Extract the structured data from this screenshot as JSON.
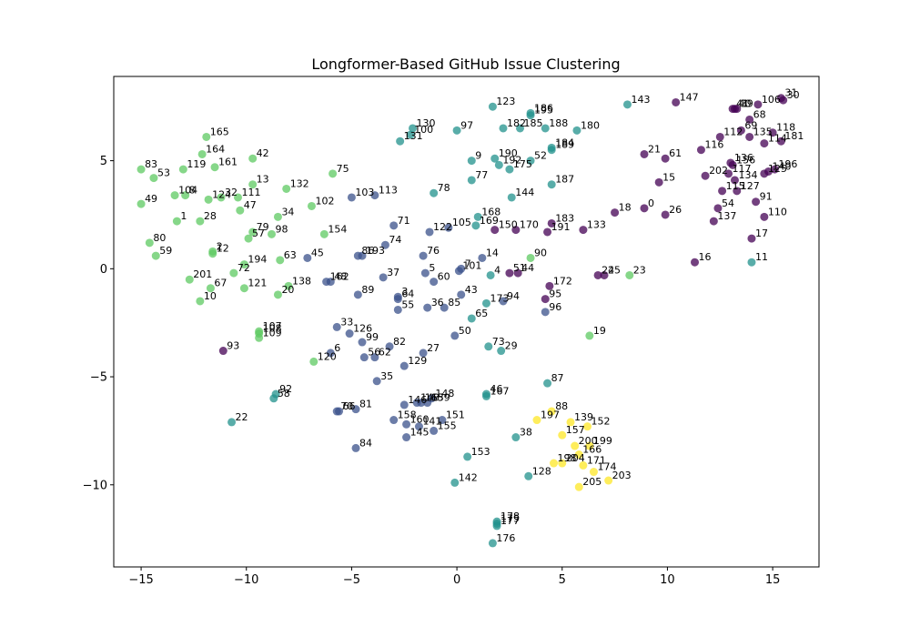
{
  "chart_data": {
    "type": "scatter",
    "title": "Longformer-Based GitHub Issue Clustering",
    "xlabel": "",
    "ylabel": "",
    "xlim": [
      -16.3,
      17.2
    ],
    "ylim": [
      -13.8,
      8.9
    ],
    "xticks": [
      -15,
      -10,
      -5,
      0,
      5,
      10,
      15
    ],
    "yticks": [
      -10,
      -5,
      0,
      5
    ],
    "grid": false,
    "legend": "none",
    "cluster_colors": [
      "#440154",
      "#3b528b",
      "#21918c",
      "#5ec962",
      "#fde725"
    ],
    "points": [
      {
        "id": 0,
        "x": 8.9,
        "y": 2.8,
        "c": 0
      },
      {
        "id": 1,
        "x": -13.3,
        "y": 2.2,
        "c": 3
      },
      {
        "id": 2,
        "x": -11.6,
        "y": 0.8,
        "c": 3
      },
      {
        "id": 3,
        "x": -2.8,
        "y": -1.3,
        "c": 1
      },
      {
        "id": 4,
        "x": 1.6,
        "y": -0.3,
        "c": 2
      },
      {
        "id": 5,
        "x": -1.5,
        "y": -0.2,
        "c": 1
      },
      {
        "id": 6,
        "x": -6.0,
        "y": -3.9,
        "c": 1
      },
      {
        "id": 7,
        "x": 0.2,
        "y": 0.0,
        "c": 1
      },
      {
        "id": 8,
        "x": -12.9,
        "y": 3.4,
        "c": 3
      },
      {
        "id": 9,
        "x": 0.7,
        "y": 5.0,
        "c": 2
      },
      {
        "id": 10,
        "x": -12.2,
        "y": -1.5,
        "c": 3
      },
      {
        "id": 11,
        "x": 14.0,
        "y": 0.3,
        "c": 2
      },
      {
        "id": 12,
        "x": -11.6,
        "y": 0.7,
        "c": 3
      },
      {
        "id": 13,
        "x": -9.7,
        "y": 3.9,
        "c": 3
      },
      {
        "id": 14,
        "x": 1.2,
        "y": 0.5,
        "c": 1
      },
      {
        "id": 15,
        "x": 9.6,
        "y": 4.0,
        "c": 0
      },
      {
        "id": 16,
        "x": 11.3,
        "y": 0.3,
        "c": 0
      },
      {
        "id": 17,
        "x": 14.0,
        "y": 1.4,
        "c": 0
      },
      {
        "id": 18,
        "x": 7.5,
        "y": 2.6,
        "c": 0
      },
      {
        "id": 19,
        "x": 6.3,
        "y": -3.1,
        "c": 3
      },
      {
        "id": 20,
        "x": -8.5,
        "y": -1.2,
        "c": 3
      },
      {
        "id": 21,
        "x": 8.9,
        "y": 5.3,
        "c": 0
      },
      {
        "id": 22,
        "x": -10.7,
        "y": -7.1,
        "c": 2
      },
      {
        "id": 23,
        "x": 8.2,
        "y": -0.3,
        "c": 3
      },
      {
        "id": 24,
        "x": 6.7,
        "y": -0.3,
        "c": 0
      },
      {
        "id": 25,
        "x": 7.0,
        "y": -0.3,
        "c": 0
      },
      {
        "id": 26,
        "x": 9.9,
        "y": 2.5,
        "c": 0
      },
      {
        "id": 27,
        "x": -1.6,
        "y": -3.9,
        "c": 1
      },
      {
        "id": 28,
        "x": -12.2,
        "y": 2.2,
        "c": 3
      },
      {
        "id": 29,
        "x": 2.1,
        "y": -3.8,
        "c": 2
      },
      {
        "id": 30,
        "x": 15.5,
        "y": 7.8,
        "c": 0
      },
      {
        "id": 31,
        "x": 15.4,
        "y": 7.9,
        "c": 0
      },
      {
        "id": 32,
        "x": -11.2,
        "y": 3.3,
        "c": 3
      },
      {
        "id": 33,
        "x": -5.7,
        "y": -2.7,
        "c": 1
      },
      {
        "id": 34,
        "x": -8.5,
        "y": 2.4,
        "c": 3
      },
      {
        "id": 35,
        "x": -3.8,
        "y": -5.2,
        "c": 1
      },
      {
        "id": 36,
        "x": -1.4,
        "y": -1.8,
        "c": 1
      },
      {
        "id": 37,
        "x": -3.5,
        "y": -0.4,
        "c": 1
      },
      {
        "id": 38,
        "x": 2.8,
        "y": -7.8,
        "c": 2
      },
      {
        "id": 39,
        "x": 13.3,
        "y": 7.4,
        "c": 0
      },
      {
        "id": 40,
        "x": 13.2,
        "y": 7.4,
        "c": 0
      },
      {
        "id": 41,
        "x": 13.1,
        "y": 7.4,
        "c": 0
      },
      {
        "id": 42,
        "x": -9.7,
        "y": 5.1,
        "c": 3
      },
      {
        "id": 43,
        "x": 0.2,
        "y": -1.2,
        "c": 1
      },
      {
        "id": 44,
        "x": 2.9,
        "y": -0.2,
        "c": 0
      },
      {
        "id": 45,
        "x": -7.1,
        "y": 0.5,
        "c": 1
      },
      {
        "id": 46,
        "x": 1.4,
        "y": -5.8,
        "c": 2
      },
      {
        "id": 47,
        "x": -10.3,
        "y": 2.7,
        "c": 3
      },
      {
        "id": 48,
        "x": -6.0,
        "y": -0.6,
        "c": 1
      },
      {
        "id": 49,
        "x": -15.0,
        "y": 3.0,
        "c": 3
      },
      {
        "id": 50,
        "x": -0.1,
        "y": -3.1,
        "c": 1
      },
      {
        "id": 51,
        "x": 2.5,
        "y": -0.2,
        "c": 0
      },
      {
        "id": 52,
        "x": 3.5,
        "y": 5.0,
        "c": 2
      },
      {
        "id": 53,
        "x": -14.4,
        "y": 4.2,
        "c": 3
      },
      {
        "id": 54,
        "x": 12.4,
        "y": 2.8,
        "c": 0
      },
      {
        "id": 55,
        "x": -2.8,
        "y": -1.9,
        "c": 1
      },
      {
        "id": 56,
        "x": -4.4,
        "y": -4.1,
        "c": 1
      },
      {
        "id": 57,
        "x": -9.9,
        "y": 1.4,
        "c": 3
      },
      {
        "id": 58,
        "x": -8.7,
        "y": -6.0,
        "c": 2
      },
      {
        "id": 59,
        "x": -14.3,
        "y": 0.6,
        "c": 3
      },
      {
        "id": 60,
        "x": -1.1,
        "y": -0.6,
        "c": 1
      },
      {
        "id": 61,
        "x": 9.9,
        "y": 5.1,
        "c": 0
      },
      {
        "id": 62,
        "x": -3.9,
        "y": -4.1,
        "c": 1
      },
      {
        "id": 63,
        "x": -8.4,
        "y": 0.4,
        "c": 3
      },
      {
        "id": 64,
        "x": -2.8,
        "y": -1.4,
        "c": 1
      },
      {
        "id": 65,
        "x": 0.7,
        "y": -2.3,
        "c": 2
      },
      {
        "id": 66,
        "x": -5.6,
        "y": -6.6,
        "c": 1
      },
      {
        "id": 67,
        "x": -11.7,
        "y": -0.9,
        "c": 3
      },
      {
        "id": 68,
        "x": 13.9,
        "y": 6.9,
        "c": 0
      },
      {
        "id": 69,
        "x": 13.5,
        "y": 6.4,
        "c": 0
      },
      {
        "id": 70,
        "x": -5.7,
        "y": -6.6,
        "c": 1
      },
      {
        "id": 71,
        "x": -3.0,
        "y": 2.0,
        "c": 1
      },
      {
        "id": 72,
        "x": -10.6,
        "y": -0.2,
        "c": 3
      },
      {
        "id": 73,
        "x": 1.5,
        "y": -3.6,
        "c": 2
      },
      {
        "id": 74,
        "x": -3.4,
        "y": 1.1,
        "c": 1
      },
      {
        "id": 75,
        "x": -5.9,
        "y": 4.4,
        "c": 3
      },
      {
        "id": 76,
        "x": -1.6,
        "y": 0.6,
        "c": 1
      },
      {
        "id": 77,
        "x": 0.7,
        "y": 4.1,
        "c": 2
      },
      {
        "id": 78,
        "x": -1.1,
        "y": 3.5,
        "c": 2
      },
      {
        "id": 79,
        "x": -9.7,
        "y": 1.7,
        "c": 3
      },
      {
        "id": 80,
        "x": -14.6,
        "y": 1.2,
        "c": 3
      },
      {
        "id": 81,
        "x": -4.8,
        "y": -6.5,
        "c": 1
      },
      {
        "id": 82,
        "x": -3.2,
        "y": -3.6,
        "c": 1
      },
      {
        "id": 83,
        "x": -15.0,
        "y": 4.6,
        "c": 3
      },
      {
        "id": 84,
        "x": -4.8,
        "y": -8.3,
        "c": 1
      },
      {
        "id": 85,
        "x": -0.6,
        "y": -1.8,
        "c": 1
      },
      {
        "id": 86,
        "x": -4.7,
        "y": 0.6,
        "c": 1
      },
      {
        "id": 87,
        "x": 4.3,
        "y": -5.3,
        "c": 2
      },
      {
        "id": 88,
        "x": 4.5,
        "y": -6.6,
        "c": 4
      },
      {
        "id": 89,
        "x": -4.7,
        "y": -1.2,
        "c": 1
      },
      {
        "id": 90,
        "x": 3.5,
        "y": 0.5,
        "c": 3
      },
      {
        "id": 91,
        "x": 14.2,
        "y": 3.1,
        "c": 0
      },
      {
        "id": 92,
        "x": -8.6,
        "y": -5.8,
        "c": 2
      },
      {
        "id": 93,
        "x": -11.1,
        "y": -3.8,
        "c": 0
      },
      {
        "id": 94,
        "x": 2.2,
        "y": -1.5,
        "c": 1
      },
      {
        "id": 95,
        "x": 4.2,
        "y": -1.4,
        "c": 0
      },
      {
        "id": 96,
        "x": 4.2,
        "y": -2.0,
        "c": 1
      },
      {
        "id": 97,
        "x": 0.0,
        "y": 6.4,
        "c": 2
      },
      {
        "id": 98,
        "x": -8.8,
        "y": 1.6,
        "c": 3
      },
      {
        "id": 99,
        "x": -4.5,
        "y": -3.4,
        "c": 1
      },
      {
        "id": 100,
        "x": -2.2,
        "y": 6.2,
        "c": 2
      },
      {
        "id": 101,
        "x": 0.1,
        "y": -0.1,
        "c": 1
      },
      {
        "id": 102,
        "x": -6.9,
        "y": 2.9,
        "c": 3
      },
      {
        "id": 103,
        "x": -5.0,
        "y": 3.3,
        "c": 1
      },
      {
        "id": 104,
        "x": -13.4,
        "y": 3.4,
        "c": 3
      },
      {
        "id": 105,
        "x": -0.4,
        "y": 1.9,
        "c": 1
      },
      {
        "id": 106,
        "x": 14.3,
        "y": 7.6,
        "c": 0
      },
      {
        "id": 107,
        "x": -9.4,
        "y": -2.9,
        "c": 3
      },
      {
        "id": 108,
        "x": -9.4,
        "y": -3.0,
        "c": 3
      },
      {
        "id": 109,
        "x": -9.4,
        "y": -3.2,
        "c": 3
      },
      {
        "id": 110,
        "x": 14.6,
        "y": 2.4,
        "c": 0
      },
      {
        "id": 111,
        "x": -10.4,
        "y": 3.3,
        "c": 3
      },
      {
        "id": 112,
        "x": 12.5,
        "y": 6.1,
        "c": 0
      },
      {
        "id": 113,
        "x": -3.9,
        "y": 3.4,
        "c": 1
      },
      {
        "id": 114,
        "x": 14.6,
        "y": 5.8,
        "c": 0
      },
      {
        "id": 115,
        "x": 12.6,
        "y": 3.6,
        "c": 0
      },
      {
        "id": 116,
        "x": 11.6,
        "y": 5.5,
        "c": 0
      },
      {
        "id": 117,
        "x": 12.9,
        "y": 4.4,
        "c": 0
      },
      {
        "id": 118,
        "x": 15.0,
        "y": 6.3,
        "c": 0
      },
      {
        "id": 119,
        "x": -13.0,
        "y": 4.6,
        "c": 3
      },
      {
        "id": 120,
        "x": -6.8,
        "y": -4.3,
        "c": 3
      },
      {
        "id": 121,
        "x": -10.1,
        "y": -0.9,
        "c": 3
      },
      {
        "id": 122,
        "x": -1.3,
        "y": 1.7,
        "c": 1
      },
      {
        "id": 123,
        "x": 1.7,
        "y": 7.5,
        "c": 2
      },
      {
        "id": 124,
        "x": -11.8,
        "y": 3.2,
        "c": 3
      },
      {
        "id": 125,
        "x": 14.6,
        "y": 4.4,
        "c": 0
      },
      {
        "id": 126,
        "x": -5.1,
        "y": -3.0,
        "c": 1
      },
      {
        "id": 127,
        "x": 13.3,
        "y": 3.6,
        "c": 0
      },
      {
        "id": 128,
        "x": 3.4,
        "y": -9.6,
        "c": 2
      },
      {
        "id": 129,
        "x": -2.5,
        "y": -4.5,
        "c": 1
      },
      {
        "id": 130,
        "x": -2.1,
        "y": 6.5,
        "c": 2
      },
      {
        "id": 131,
        "x": -2.7,
        "y": 5.9,
        "c": 2
      },
      {
        "id": 132,
        "x": -8.1,
        "y": 3.7,
        "c": 3
      },
      {
        "id": 133,
        "x": 6.0,
        "y": 1.8,
        "c": 0
      },
      {
        "id": 134,
        "x": 13.2,
        "y": 4.1,
        "c": 0
      },
      {
        "id": 135,
        "x": 13.9,
        "y": 6.1,
        "c": 0
      },
      {
        "id": 136,
        "x": 13.0,
        "y": 4.9,
        "c": 0
      },
      {
        "id": 137,
        "x": 12.2,
        "y": 2.2,
        "c": 0
      },
      {
        "id": 138,
        "x": -8.0,
        "y": -0.8,
        "c": 3
      },
      {
        "id": 139,
        "x": 5.4,
        "y": -7.1,
        "c": 4
      },
      {
        "id": 140,
        "x": 14.8,
        "y": 4.5,
        "c": 0
      },
      {
        "id": 141,
        "x": -1.8,
        "y": -7.3,
        "c": 1
      },
      {
        "id": 142,
        "x": -0.1,
        "y": -9.9,
        "c": 2
      },
      {
        "id": 143,
        "x": 8.1,
        "y": 7.6,
        "c": 2
      },
      {
        "id": 144,
        "x": 2.6,
        "y": 3.3,
        "c": 2
      },
      {
        "id": 145,
        "x": -2.4,
        "y": -7.8,
        "c": 1
      },
      {
        "id": 146,
        "x": -2.5,
        "y": -6.3,
        "c": 1
      },
      {
        "id": 147,
        "x": 10.4,
        "y": 7.7,
        "c": 0
      },
      {
        "id": 148,
        "x": -1.2,
        "y": -6.0,
        "c": 1
      },
      {
        "id": 149,
        "x": -1.9,
        "y": -6.2,
        "c": 1
      },
      {
        "id": 150,
        "x": 1.8,
        "y": 1.8,
        "c": 0
      },
      {
        "id": 151,
        "x": -0.7,
        "y": -7.0,
        "c": 1
      },
      {
        "id": 152,
        "x": 6.2,
        "y": -7.3,
        "c": 4
      },
      {
        "id": 153,
        "x": 0.5,
        "y": -8.7,
        "c": 2
      },
      {
        "id": 154,
        "x": -6.3,
        "y": 1.6,
        "c": 3
      },
      {
        "id": 155,
        "x": -1.1,
        "y": -7.5,
        "c": 1
      },
      {
        "id": 156,
        "x": 13.1,
        "y": 4.8,
        "c": 0
      },
      {
        "id": 157,
        "x": 5.0,
        "y": -7.7,
        "c": 4
      },
      {
        "id": 158,
        "x": -3.0,
        "y": -7.0,
        "c": 1
      },
      {
        "id": 159,
        "x": -1.4,
        "y": -6.2,
        "c": 1
      },
      {
        "id": 160,
        "x": -2.4,
        "y": -7.2,
        "c": 1
      },
      {
        "id": 161,
        "x": -11.5,
        "y": 4.7,
        "c": 3
      },
      {
        "id": 162,
        "x": -6.2,
        "y": -0.6,
        "c": 1
      },
      {
        "id": 163,
        "x": -1.7,
        "y": -6.2,
        "c": 1
      },
      {
        "id": 164,
        "x": -12.1,
        "y": 5.3,
        "c": 3
      },
      {
        "id": 165,
        "x": -11.9,
        "y": 6.1,
        "c": 3
      },
      {
        "id": 166,
        "x": 5.8,
        "y": -8.6,
        "c": 4
      },
      {
        "id": 167,
        "x": 1.4,
        "y": -5.9,
        "c": 2
      },
      {
        "id": 168,
        "x": 1.0,
        "y": 2.4,
        "c": 2
      },
      {
        "id": 169,
        "x": 0.9,
        "y": 2.0,
        "c": 2
      },
      {
        "id": 170,
        "x": 2.8,
        "y": 1.8,
        "c": 0
      },
      {
        "id": 171,
        "x": 6.0,
        "y": -9.1,
        "c": 4
      },
      {
        "id": 172,
        "x": 4.4,
        "y": -0.8,
        "c": 0
      },
      {
        "id": 173,
        "x": 1.4,
        "y": -1.6,
        "c": 2
      },
      {
        "id": 174,
        "x": 6.5,
        "y": -9.4,
        "c": 4
      },
      {
        "id": 175,
        "x": 2.5,
        "y": 4.6,
        "c": 2
      },
      {
        "id": 176,
        "x": 1.7,
        "y": -12.7,
        "c": 2
      },
      {
        "id": 177,
        "x": 1.9,
        "y": -11.9,
        "c": 2
      },
      {
        "id": 178,
        "x": 1.9,
        "y": -11.7,
        "c": 2
      },
      {
        "id": 179,
        "x": 1.9,
        "y": -11.8,
        "c": 2
      },
      {
        "id": 180,
        "x": 5.7,
        "y": 6.4,
        "c": 2
      },
      {
        "id": 181,
        "x": 15.4,
        "y": 5.9,
        "c": 0
      },
      {
        "id": 182,
        "x": 2.2,
        "y": 6.5,
        "c": 2
      },
      {
        "id": 183,
        "x": 4.5,
        "y": 2.1,
        "c": 0
      },
      {
        "id": 184,
        "x": 4.5,
        "y": 5.6,
        "c": 2
      },
      {
        "id": 185,
        "x": 3.0,
        "y": 6.5,
        "c": 2
      },
      {
        "id": 186,
        "x": 3.5,
        "y": 7.2,
        "c": 2
      },
      {
        "id": 187,
        "x": 4.5,
        "y": 3.9,
        "c": 2
      },
      {
        "id": 188,
        "x": 4.2,
        "y": 6.5,
        "c": 2
      },
      {
        "id": 189,
        "x": 4.5,
        "y": 5.5,
        "c": 2
      },
      {
        "id": 190,
        "x": 1.8,
        "y": 5.1,
        "c": 2
      },
      {
        "id": 191,
        "x": 4.3,
        "y": 1.7,
        "c": 0
      },
      {
        "id": 192,
        "x": 2.0,
        "y": 4.8,
        "c": 2
      },
      {
        "id": 193,
        "x": -4.5,
        "y": 0.6,
        "c": 1
      },
      {
        "id": 194,
        "x": -10.1,
        "y": 0.2,
        "c": 3
      },
      {
        "id": 195,
        "x": 3.5,
        "y": 7.1,
        "c": 2
      },
      {
        "id": 196,
        "x": 15.1,
        "y": 4.6,
        "c": 0
      },
      {
        "id": 197,
        "x": 3.8,
        "y": -7.0,
        "c": 4
      },
      {
        "id": 198,
        "x": 4.6,
        "y": -9.0,
        "c": 4
      },
      {
        "id": 199,
        "x": 6.3,
        "y": -8.2,
        "c": 4
      },
      {
        "id": 200,
        "x": 5.6,
        "y": -8.2,
        "c": 4
      },
      {
        "id": 201,
        "x": -12.7,
        "y": -0.5,
        "c": 3
      },
      {
        "id": 202,
        "x": 11.8,
        "y": 4.3,
        "c": 0
      },
      {
        "id": 203,
        "x": 7.2,
        "y": -9.8,
        "c": 4
      },
      {
        "id": 204,
        "x": 5.0,
        "y": -9.0,
        "c": 4
      },
      {
        "id": 205,
        "x": 5.8,
        "y": -10.1,
        "c": 4
      }
    ]
  }
}
